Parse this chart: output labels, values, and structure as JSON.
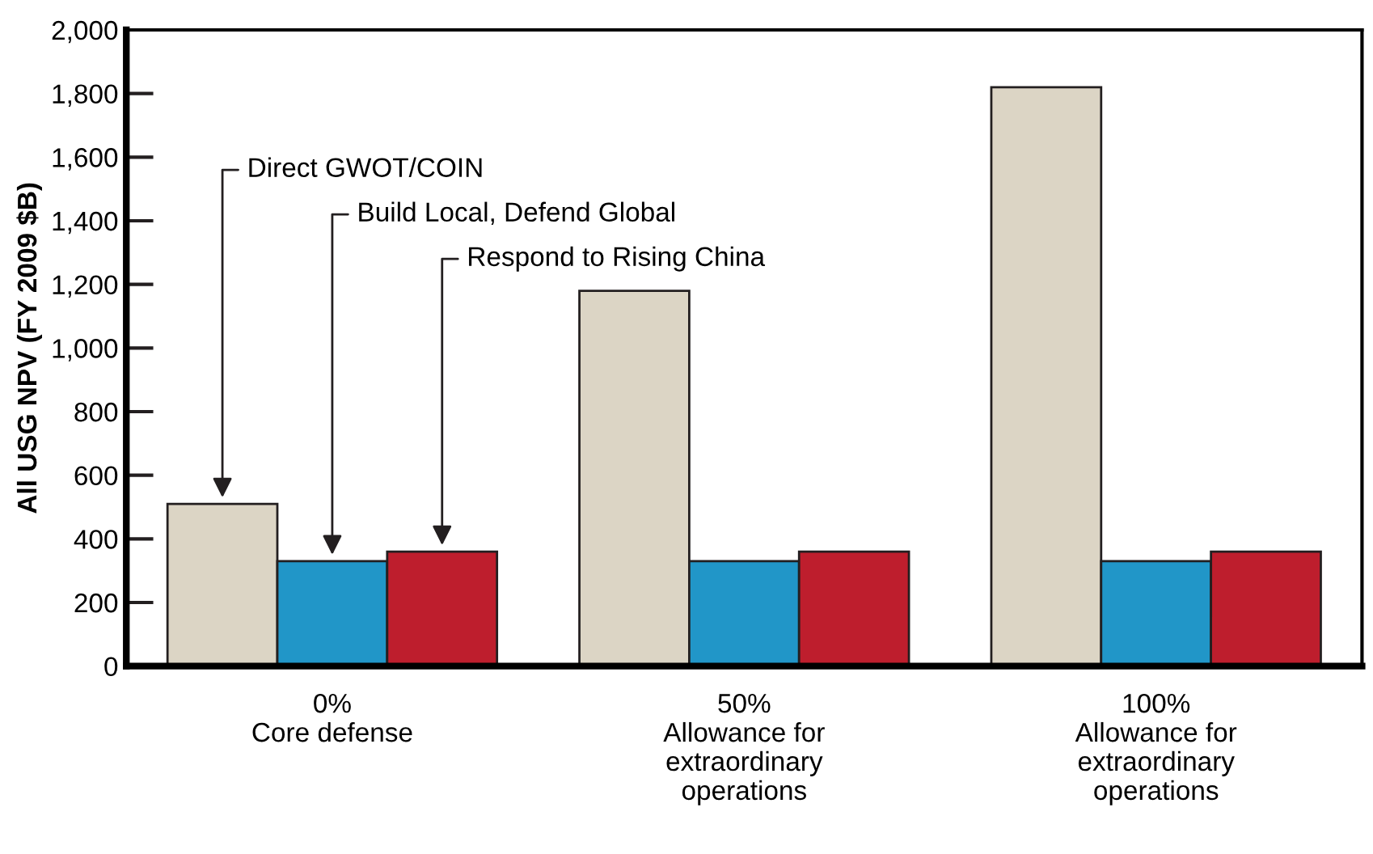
{
  "chart_data": {
    "type": "bar",
    "ylabel": "All USG NPV (FY 2009 $B)",
    "categories": [
      "0%\nCore defense",
      "50%\nAllowance for\nextraordinary\noperations",
      "100%\nAllowance for\nextraordinary\noperations"
    ],
    "series": [
      {
        "name": "Direct GWOT/COIN",
        "color": "#dcd5c5",
        "values": [
          510,
          1180,
          1820
        ]
      },
      {
        "name": "Build Local, Defend Global",
        "color": "#2196c8",
        "values": [
          330,
          330,
          330
        ]
      },
      {
        "name": "Respond to Rising China",
        "color": "#be1e2d",
        "values": [
          360,
          360,
          360
        ]
      }
    ],
    "ylim": [
      0,
      2000
    ],
    "yticks": [
      {
        "value": 0,
        "label": "0"
      },
      {
        "value": 200,
        "label": "200"
      },
      {
        "value": 400,
        "label": "400"
      },
      {
        "value": 600,
        "label": "600"
      },
      {
        "value": 800,
        "label": "800"
      },
      {
        "value": 1000,
        "label": "1,000"
      },
      {
        "value": 1200,
        "label": "1,200"
      },
      {
        "value": 1400,
        "label": "1,400"
      },
      {
        "value": 1600,
        "label": "1,600"
      },
      {
        "value": 1800,
        "label": "1,800"
      },
      {
        "value": 2000,
        "label": "2,000"
      }
    ],
    "grid": false,
    "legend": false
  }
}
